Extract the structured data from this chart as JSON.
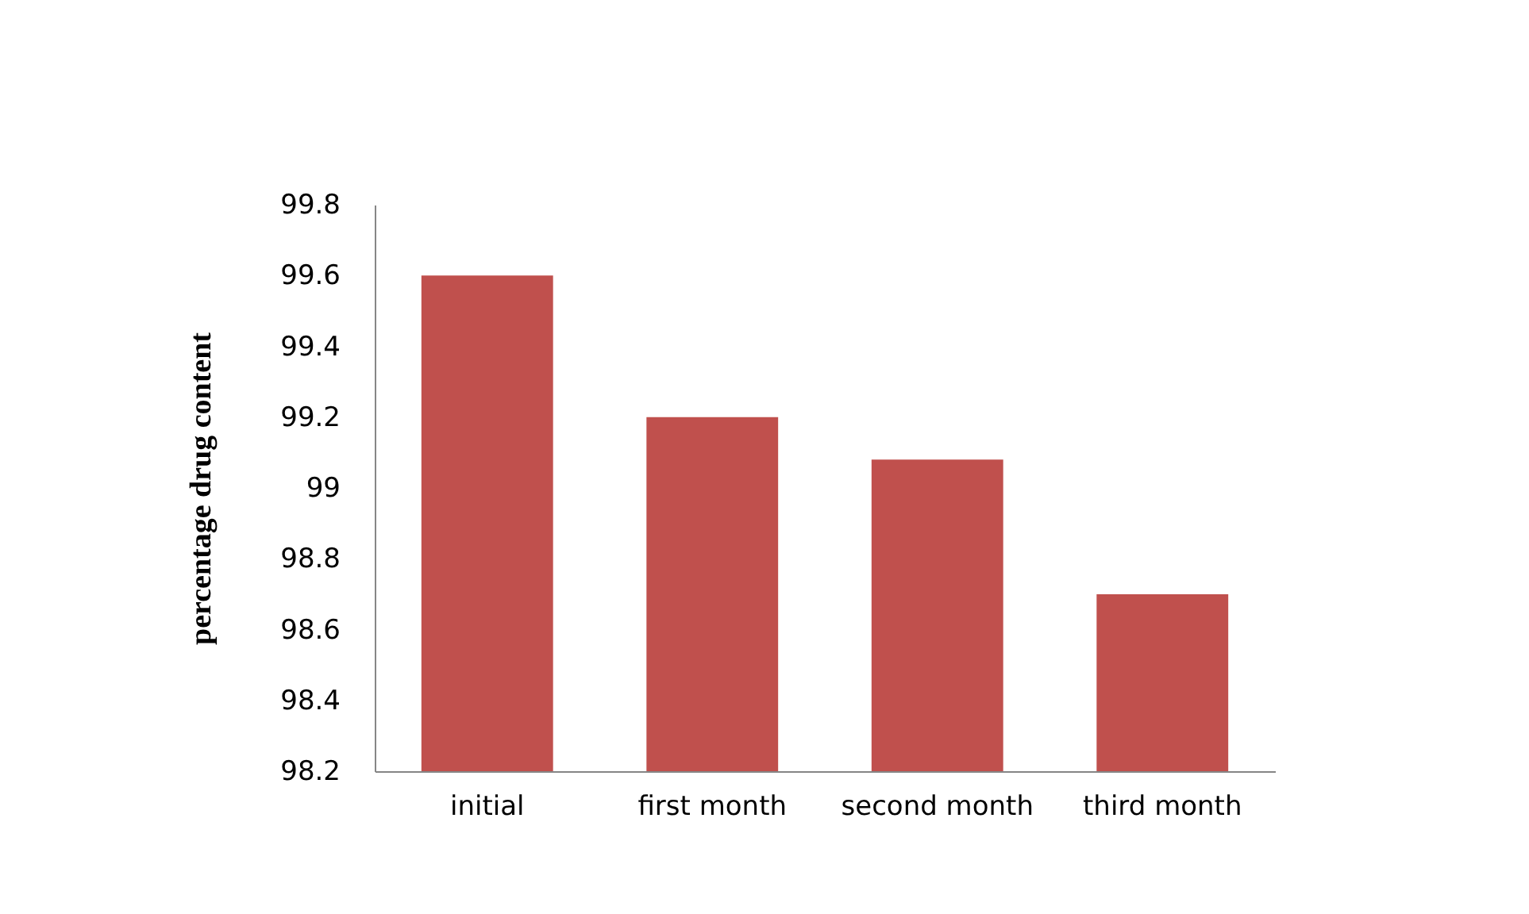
{
  "chart_data": {
    "type": "bar",
    "ylabel": "percentage drug  content",
    "categories": [
      "initial",
      "first month",
      "second month",
      "third month"
    ],
    "values": [
      99.6,
      99.2,
      99.08,
      98.7
    ],
    "color": "#c0504d",
    "ylim": [
      98.2,
      99.8
    ],
    "yticks": [
      98.2,
      98.4,
      98.6,
      98.8,
      99,
      99.2,
      99.4,
      99.6,
      99.8
    ],
    "grid": false
  }
}
